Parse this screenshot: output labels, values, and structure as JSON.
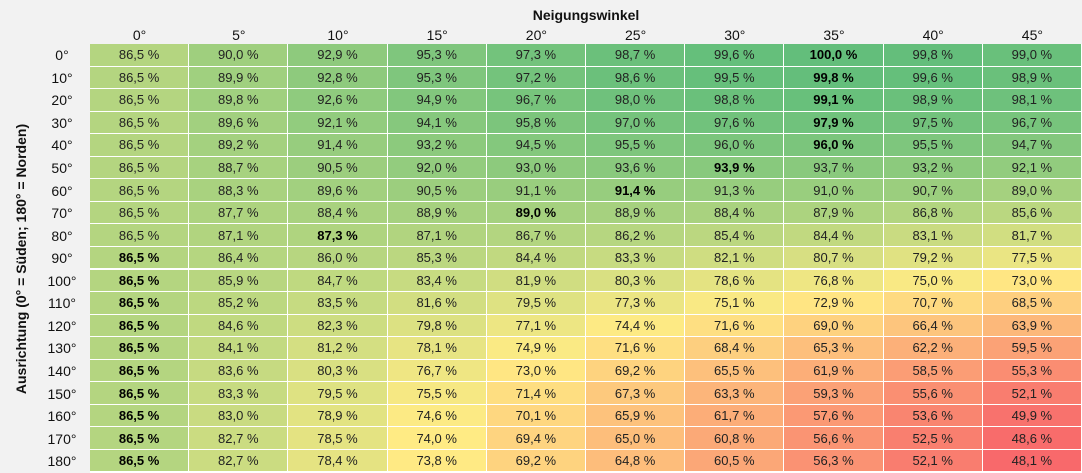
{
  "chart_data": {
    "type": "heatmap",
    "title": "",
    "xlabel": "Neigungswinkel",
    "ylabel": "Ausrichtung (0° = Süden; 180° = Norden)",
    "x": [
      "0°",
      "5°",
      "10°",
      "15°",
      "20°",
      "25°",
      "30°",
      "35°",
      "40°",
      "45°"
    ],
    "y": [
      "0°",
      "10°",
      "20°",
      "30°",
      "40°",
      "50°",
      "60°",
      "70°",
      "80°",
      "90°",
      "100°",
      "110°",
      "120°",
      "130°",
      "140°",
      "150°",
      "160°",
      "170°",
      "180°"
    ],
    "values": [
      [
        86.5,
        90.0,
        92.9,
        95.3,
        97.3,
        98.7,
        99.6,
        100.0,
        99.8,
        99.0
      ],
      [
        86.5,
        89.9,
        92.8,
        95.3,
        97.2,
        98.6,
        99.5,
        99.8,
        99.6,
        98.9
      ],
      [
        86.5,
        89.8,
        92.6,
        94.9,
        96.7,
        98.0,
        98.8,
        99.1,
        98.9,
        98.1
      ],
      [
        86.5,
        89.6,
        92.1,
        94.1,
        95.8,
        97.0,
        97.6,
        97.9,
        97.5,
        96.7
      ],
      [
        86.5,
        89.2,
        91.4,
        93.2,
        94.5,
        95.5,
        96.0,
        96.0,
        95.5,
        94.7
      ],
      [
        86.5,
        88.7,
        90.5,
        92.0,
        93.0,
        93.6,
        93.9,
        93.7,
        93.2,
        92.1
      ],
      [
        86.5,
        88.3,
        89.6,
        90.5,
        91.1,
        91.4,
        91.3,
        91.0,
        90.7,
        89.0
      ],
      [
        86.5,
        87.7,
        88.4,
        88.9,
        89.0,
        88.9,
        88.4,
        87.9,
        86.8,
        85.6
      ],
      [
        86.5,
        87.1,
        87.3,
        87.1,
        86.7,
        86.2,
        85.4,
        84.4,
        83.1,
        81.7
      ],
      [
        86.5,
        86.4,
        86.0,
        85.3,
        84.4,
        83.3,
        82.1,
        80.7,
        79.2,
        77.5
      ],
      [
        86.5,
        85.9,
        84.7,
        83.4,
        81.9,
        80.3,
        78.6,
        76.8,
        75.0,
        73.0
      ],
      [
        86.5,
        85.2,
        83.5,
        81.6,
        79.5,
        77.3,
        75.1,
        72.9,
        70.7,
        68.5
      ],
      [
        86.5,
        84.6,
        82.3,
        79.8,
        77.1,
        74.4,
        71.6,
        69.0,
        66.4,
        63.9
      ],
      [
        86.5,
        84.1,
        81.2,
        78.1,
        74.9,
        71.6,
        68.4,
        65.3,
        62.2,
        59.5
      ],
      [
        86.5,
        83.6,
        80.3,
        76.7,
        73.0,
        69.2,
        65.5,
        61.9,
        58.5,
        55.3
      ],
      [
        86.5,
        83.3,
        79.5,
        75.5,
        71.4,
        67.3,
        63.3,
        59.3,
        55.6,
        52.1
      ],
      [
        86.5,
        83.0,
        78.9,
        74.6,
        70.1,
        65.9,
        61.7,
        57.6,
        53.6,
        49.9
      ],
      [
        86.5,
        82.7,
        78.5,
        74.0,
        69.4,
        65.0,
        60.8,
        56.6,
        52.5,
        48.6
      ],
      [
        86.5,
        82.7,
        78.4,
        73.8,
        69.2,
        64.8,
        60.5,
        56.3,
        52.1,
        48.1
      ]
    ],
    "labels": [
      [
        "86,5 %",
        "90,0 %",
        "92,9 %",
        "95,3 %",
        "97,3 %",
        "98,7 %",
        "99,6 %",
        "100,0 %",
        "99,8 %",
        "99,0 %"
      ],
      [
        "86,5 %",
        "89,9 %",
        "92,8 %",
        "95,3 %",
        "97,2 %",
        "98,6 %",
        "99,5 %",
        "99,8 %",
        "99,6 %",
        "98,9 %"
      ],
      [
        "86,5 %",
        "89,8 %",
        "92,6 %",
        "94,9 %",
        "96,7 %",
        "98,0 %",
        "98,8 %",
        "99,1 %",
        "98,9 %",
        "98,1 %"
      ],
      [
        "86,5 %",
        "89,6 %",
        "92,1 %",
        "94,1 %",
        "95,8 %",
        "97,0 %",
        "97,6 %",
        "97,9 %",
        "97,5 %",
        "96,7 %"
      ],
      [
        "86,5 %",
        "89,2 %",
        "91,4 %",
        "93,2 %",
        "94,5 %",
        "95,5 %",
        "96,0 %",
        "96,0 %",
        "95,5 %",
        "94,7 %"
      ],
      [
        "86,5 %",
        "88,7 %",
        "90,5 %",
        "92,0 %",
        "93,0 %",
        "93,6 %",
        "93,9 %",
        "93,7 %",
        "93,2 %",
        "92,1 %"
      ],
      [
        "86,5 %",
        "88,3 %",
        "89,6 %",
        "90,5 %",
        "91,1 %",
        "91,4 %",
        "91,3 %",
        "91,0 %",
        "90,7 %",
        "89,0 %"
      ],
      [
        "86,5 %",
        "87,7 %",
        "88,4 %",
        "88,9 %",
        "89,0 %",
        "88,9 %",
        "88,4 %",
        "87,9 %",
        "86,8 %",
        "85,6 %"
      ],
      [
        "86,5 %",
        "87,1 %",
        "87,3 %",
        "87,1 %",
        "86,7 %",
        "86,2 %",
        "85,4 %",
        "84,4 %",
        "83,1 %",
        "81,7 %"
      ],
      [
        "86,5 %",
        "86,4 %",
        "86,0 %",
        "85,3 %",
        "84,4 %",
        "83,3 %",
        "82,1 %",
        "80,7 %",
        "79,2 %",
        "77,5 %"
      ],
      [
        "86,5 %",
        "85,9 %",
        "84,7 %",
        "83,4 %",
        "81,9 %",
        "80,3 %",
        "78,6 %",
        "76,8 %",
        "75,0 %",
        "73,0 %"
      ],
      [
        "86,5 %",
        "85,2 %",
        "83,5 %",
        "81,6 %",
        "79,5 %",
        "77,3 %",
        "75,1 %",
        "72,9 %",
        "70,7 %",
        "68,5 %"
      ],
      [
        "86,5 %",
        "84,6 %",
        "82,3 %",
        "79,8 %",
        "77,1 %",
        "74,4 %",
        "71,6 %",
        "69,0 %",
        "66,4 %",
        "63,9 %"
      ],
      [
        "86,5 %",
        "84,1 %",
        "81,2 %",
        "78,1 %",
        "74,9 %",
        "71,6 %",
        "68,4 %",
        "65,3 %",
        "62,2 %",
        "59,5 %"
      ],
      [
        "86,5 %",
        "83,6 %",
        "80,3 %",
        "76,7 %",
        "73,0 %",
        "69,2 %",
        "65,5 %",
        "61,9 %",
        "58,5 %",
        "55,3 %"
      ],
      [
        "86,5 %",
        "83,3 %",
        "79,5 %",
        "75,5 %",
        "71,4 %",
        "67,3 %",
        "63,3 %",
        "59,3 %",
        "55,6 %",
        "52,1 %"
      ],
      [
        "86,5 %",
        "83,0 %",
        "78,9 %",
        "74,6 %",
        "70,1 %",
        "65,9 %",
        "61,7 %",
        "57,6 %",
        "53,6 %",
        "49,9 %"
      ],
      [
        "86,5 %",
        "82,7 %",
        "78,5 %",
        "74,0 %",
        "69,4 %",
        "65,0 %",
        "60,8 %",
        "56,6 %",
        "52,5 %",
        "48,6 %"
      ],
      [
        "86,5 %",
        "82,7 %",
        "78,4 %",
        "73,8 %",
        "69,2 %",
        "64,8 %",
        "60,5 %",
        "56,3 %",
        "52,1 %",
        "48,1 %"
      ]
    ],
    "bold_cells": [
      [
        0,
        7
      ],
      [
        1,
        7
      ],
      [
        2,
        7
      ],
      [
        3,
        7
      ],
      [
        4,
        7
      ],
      [
        5,
        6
      ],
      [
        6,
        5
      ],
      [
        7,
        4
      ],
      [
        8,
        2
      ],
      [
        9,
        0
      ],
      [
        10,
        0
      ],
      [
        11,
        0
      ],
      [
        12,
        0
      ],
      [
        13,
        0
      ],
      [
        14,
        0
      ],
      [
        15,
        0
      ],
      [
        16,
        0
      ],
      [
        17,
        0
      ],
      [
        18,
        0
      ]
    ],
    "color_scale": {
      "low": "#f8696b",
      "mid": "#ffeb84",
      "high": "#63be7b",
      "min": 48.1,
      "max": 100.0
    },
    "header_background": "#f2f2f2"
  }
}
